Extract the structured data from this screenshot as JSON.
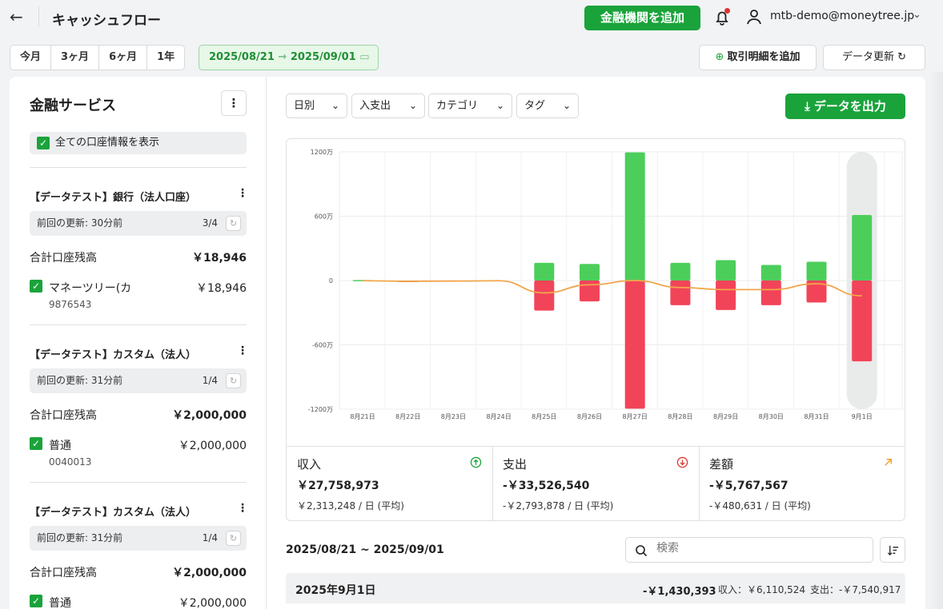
{
  "header": {
    "title": "キャッシュフロー",
    "add_institution": "金融機関を追加",
    "user_email": "mtb-demo@moneytree.jp"
  },
  "periods": [
    "今月",
    "3ヶ月",
    "6ヶ月",
    "1年"
  ],
  "date_range": {
    "start": "2025/08/21",
    "end": "2025/09/01"
  },
  "actions": {
    "add_transaction": "取引明細を追加",
    "refresh": "データ更新"
  },
  "sidebar": {
    "title": "金融サービス",
    "show_all": "全ての口座情報を表示",
    "balance_label": "合計口座残高",
    "institutions": [
      {
        "name": "【データテスト】銀行（法人口座）",
        "updated": "前回の更新: 30分前",
        "count": "3/4",
        "balance": "￥18,946",
        "account": "マネーツリー(カ",
        "account_balance": "￥18,946",
        "account_number": "9876543"
      },
      {
        "name": "【データテスト】カスタム（法人）",
        "updated": "前回の更新: 31分前",
        "count": "1/4",
        "balance": "￥2,000,000",
        "account": "普通",
        "account_balance": "￥2,000,000",
        "account_number": "0040013"
      },
      {
        "name": "【データテスト】カスタム（法人）",
        "updated": "前回の更新: 31分前",
        "count": "1/4",
        "balance": "￥2,000,000",
        "account": "普通",
        "account_balance": "￥2,000,000",
        "account_number": ""
      }
    ]
  },
  "filters": {
    "interval": "日別",
    "flow": "入支出",
    "category": "カテゴリ",
    "tag": "タグ"
  },
  "export_label": "データを出力",
  "chart_data": {
    "type": "bar",
    "categories": [
      "8月21日",
      "8月22日",
      "8月23日",
      "8月24日",
      "8月25日",
      "8月26日",
      "8月27日",
      "8月28日",
      "8月29日",
      "8月30日",
      "8月31日",
      "9月1日"
    ],
    "y_tick_labels": [
      "1200万",
      "600万",
      "0",
      "-600万",
      "-1200万"
    ],
    "ylim": [
      -12000000,
      12000000
    ],
    "series": [
      {
        "values": [
          50000,
          0,
          0,
          0,
          1650000,
          1550000,
          11950000,
          1650000,
          1900000,
          1450000,
          1750000,
          6110524
        ],
        "color": "#4cce5b"
      },
      {
        "values": [
          0,
          -150000,
          0,
          0,
          -2800000,
          -1950000,
          -11950000,
          -2300000,
          -2750000,
          -2300000,
          -2050000,
          -7540917
        ],
        "color": "#f24459"
      },
      {
        "values": [
          -20000,
          -70000,
          -50000,
          -20000,
          -1150000,
          -400000,
          0,
          -650000,
          -850000,
          -850000,
          -300000,
          -1430393
        ],
        "color": "#f2a64c"
      }
    ],
    "highlight_index": 11,
    "grid": true
  },
  "stats": {
    "income": {
      "label": "収入",
      "value": "￥27,758,973",
      "avg": "￥2,313,248 / 日 (平均)"
    },
    "expense": {
      "label": "支出",
      "value": "-￥33,526,540",
      "avg": "-￥2,793,878 / 日 (平均)"
    },
    "diff": {
      "label": "差額",
      "value": "-￥5,767,567",
      "avg": "-￥480,631 / 日 (平均)"
    }
  },
  "list": {
    "range": "2025/08/21 ~ 2025/09/01",
    "search_placeholder": "検索",
    "day": {
      "date": "2025年9月1日",
      "net": "-￥1,430,393",
      "income": "収入：￥6,110,524",
      "expense": "支出：-￥7,540,917"
    }
  }
}
